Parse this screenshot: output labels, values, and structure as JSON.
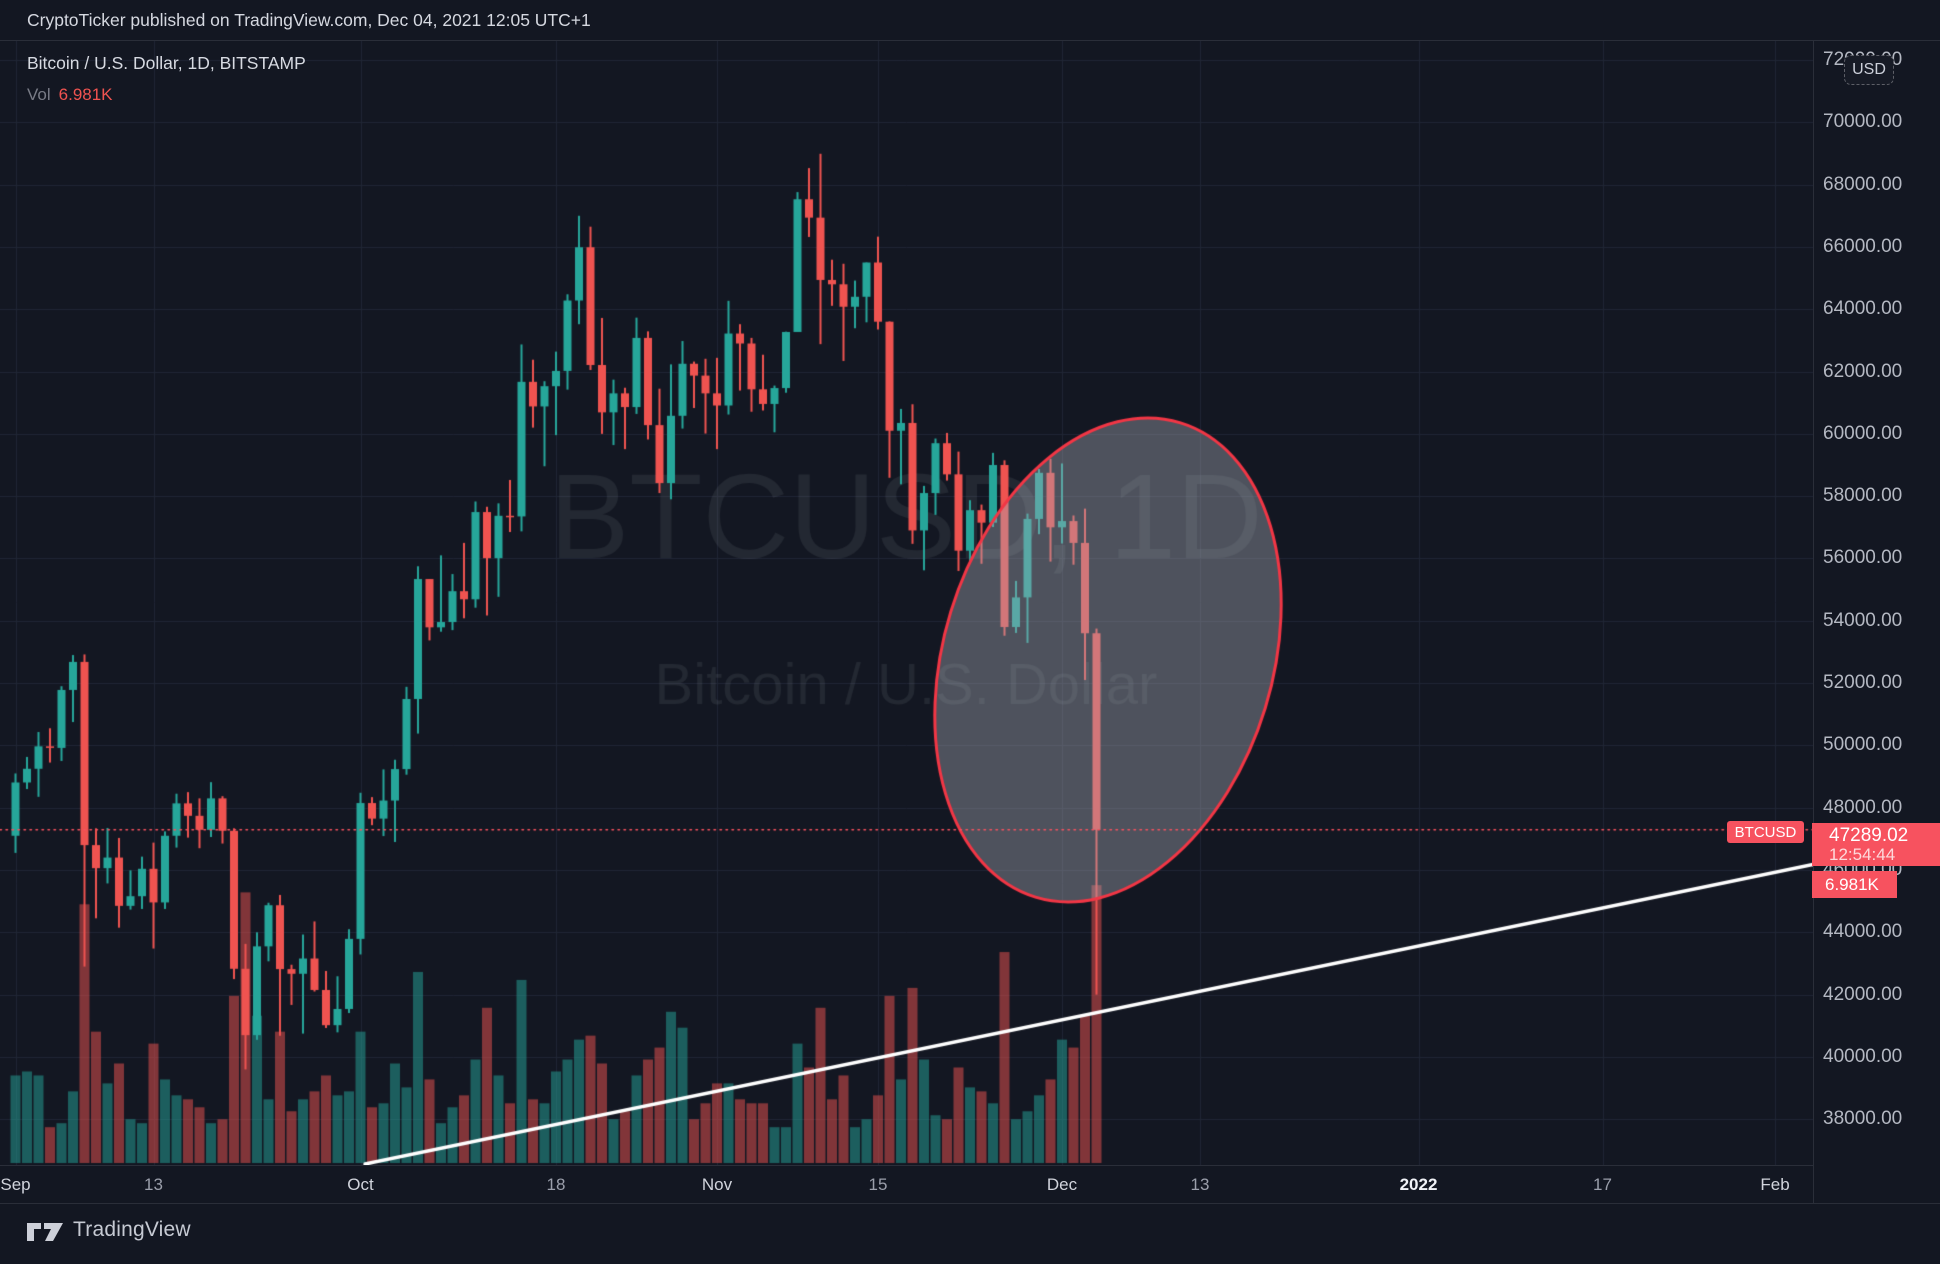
{
  "top_bar": {
    "text": "CryptoTicker published on TradingView.com, Dec 04, 2021 12:05 UTC+1"
  },
  "legend": {
    "title": "Bitcoin / U.S. Dollar, 1D, BITSTAMP",
    "vol_label": "Vol",
    "vol_value": "6.981K"
  },
  "watermark": {
    "line1": "BTCUSD, 1D",
    "line2": "Bitcoin / U.S. Dollar"
  },
  "price_axis": {
    "currency_button": "USD",
    "ticks": [
      {
        "price": 72000,
        "label": "72000.00"
      },
      {
        "price": 70000,
        "label": "70000.00"
      },
      {
        "price": 68000,
        "label": "68000.00"
      },
      {
        "price": 66000,
        "label": "66000.00"
      },
      {
        "price": 64000,
        "label": "64000.00"
      },
      {
        "price": 62000,
        "label": "62000.00"
      },
      {
        "price": 60000,
        "label": "60000.00"
      },
      {
        "price": 58000,
        "label": "58000.00"
      },
      {
        "price": 56000,
        "label": "56000.00"
      },
      {
        "price": 54000,
        "label": "54000.00"
      },
      {
        "price": 52000,
        "label": "52000.00"
      },
      {
        "price": 50000,
        "label": "50000.00"
      },
      {
        "price": 48000,
        "label": "48000.00"
      },
      {
        "price": 46000,
        "label": "46000.00"
      },
      {
        "price": 44000,
        "label": "44000.00"
      },
      {
        "price": 42000,
        "label": "42000.00"
      },
      {
        "price": 40000,
        "label": "40000.00"
      },
      {
        "price": 38000,
        "label": "38000.00"
      }
    ]
  },
  "time_axis": {
    "ticks": [
      {
        "day": 0,
        "label": "Sep",
        "type": "month"
      },
      {
        "day": 12,
        "label": "13",
        "type": "day"
      },
      {
        "day": 30,
        "label": "Oct",
        "type": "month"
      },
      {
        "day": 47,
        "label": "18",
        "type": "day"
      },
      {
        "day": 61,
        "label": "Nov",
        "type": "month"
      },
      {
        "day": 75,
        "label": "15",
        "type": "day"
      },
      {
        "day": 91,
        "label": "Dec",
        "type": "month"
      },
      {
        "day": 103,
        "label": "13",
        "type": "day"
      },
      {
        "day": 122,
        "label": "2022",
        "type": "year"
      },
      {
        "day": 138,
        "label": "17",
        "type": "day"
      },
      {
        "day": 153,
        "label": "Feb",
        "type": "month"
      }
    ]
  },
  "last_price_labels": {
    "tag": "BTCUSD",
    "price": "47289.02",
    "countdown": "12:54:44",
    "volume": "6.981K"
  },
  "footer": {
    "brand": "TradingView"
  },
  "colors": {
    "background": "#131722",
    "grid": "#202535",
    "up": "#26a69a",
    "down": "#ef5350",
    "volume_up": "rgba(38,166,154,0.5)",
    "volume_down": "rgba(239,83,80,0.5)",
    "label_red": "#f7525f",
    "ellipse_stroke": "#f23645",
    "ellipse_fill": "rgba(168,173,183,0.40)",
    "trendline": "#ffffff",
    "watermark": "rgba(210,215,226,0.085)"
  },
  "chart_data": {
    "type": "candlestick",
    "symbol": "BTCUSD",
    "exchange": "BITSTAMP",
    "interval": "1D",
    "ylim": [
      36500,
      72650
    ],
    "last_price": 47289.02,
    "dates": [
      "09-01",
      "09-02",
      "09-03",
      "09-04",
      "09-05",
      "09-06",
      "09-07",
      "09-08",
      "09-09",
      "09-10",
      "09-11",
      "09-12",
      "09-13",
      "09-14",
      "09-15",
      "09-16",
      "09-17",
      "09-18",
      "09-19",
      "09-20",
      "09-21",
      "09-22",
      "09-23",
      "09-24",
      "09-25",
      "09-26",
      "09-27",
      "09-28",
      "09-29",
      "09-30",
      "10-01",
      "10-02",
      "10-03",
      "10-04",
      "10-05",
      "10-06",
      "10-07",
      "10-08",
      "10-09",
      "10-10",
      "10-11",
      "10-12",
      "10-13",
      "10-14",
      "10-15",
      "10-16",
      "10-17",
      "10-18",
      "10-19",
      "10-20",
      "10-21",
      "10-22",
      "10-23",
      "10-24",
      "10-25",
      "10-26",
      "10-27",
      "10-28",
      "10-29",
      "10-30",
      "10-31",
      "11-01",
      "11-02",
      "11-03",
      "11-04",
      "11-05",
      "11-06",
      "11-07",
      "11-08",
      "11-09",
      "11-10",
      "11-11",
      "11-12",
      "11-13",
      "11-14",
      "11-15",
      "11-16",
      "11-17",
      "11-18",
      "11-19",
      "11-20",
      "11-21",
      "11-22",
      "11-23",
      "11-24",
      "11-25",
      "11-26",
      "11-27",
      "11-28",
      "11-29",
      "11-30",
      "12-01",
      "12-02",
      "12-03",
      "12-04"
    ],
    "open": [
      47100,
      48810,
      49250,
      49970,
      49920,
      51780,
      52680,
      46800,
      46060,
      46400,
      44850,
      45160,
      46040,
      44960,
      47100,
      48140,
      47740,
      47290,
      48300,
      47260,
      42830,
      40700,
      43550,
      44870,
      42820,
      42670,
      43160,
      42150,
      41020,
      41540,
      43790,
      48150,
      47650,
      48230,
      49240,
      51490,
      55340,
      53790,
      53960,
      54950,
      54690,
      57490,
      56010,
      57370,
      57350,
      61670,
      60880,
      61530,
      62020,
      64280,
      65990,
      62210,
      60690,
      61300,
      60860,
      63080,
      60280,
      58420,
      60580,
      62250,
      61870,
      61300,
      60910,
      63220,
      62900,
      61430,
      60960,
      61470,
      63270,
      67530,
      66940,
      64940,
      64800,
      64080,
      64400,
      65500,
      63600,
      60100,
      60350,
      56900,
      58100,
      59700,
      58700,
      56250,
      57550,
      57150,
      59000,
      53800,
      54750,
      57270,
      58750,
      57000,
      57200,
      56500,
      53600
    ],
    "high": [
      49100,
      49630,
      50430,
      50550,
      51900,
      52900,
      52920,
      47340,
      47350,
      47030,
      45990,
      46430,
      46880,
      47240,
      48450,
      48500,
      48300,
      48820,
      48370,
      47340,
      43630,
      44000,
      44950,
      45200,
      42960,
      43930,
      44350,
      42760,
      42590,
      44100,
      48480,
      48340,
      49230,
      49540,
      51880,
      55750,
      55340,
      56100,
      55500,
      56500,
      57830,
      57660,
      57770,
      58520,
      62870,
      62380,
      61690,
      62640,
      64480,
      67000,
      66650,
      63720,
      61740,
      61480,
      63730,
      63290,
      61450,
      62230,
      62980,
      62320,
      62410,
      62440,
      64270,
      63520,
      63080,
      62540,
      61550,
      63280,
      67760,
      68530,
      68990,
      65590,
      65460,
      64920,
      65500,
      66330,
      63610,
      60800,
      60950,
      58330,
      59850,
      60030,
      59430,
      57870,
      57730,
      59390,
      59150,
      55280,
      57440,
      58870,
      59200,
      59050,
      57380,
      57600,
      53750
    ],
    "low": [
      46550,
      48600,
      48350,
      49450,
      49500,
      50750,
      42900,
      44450,
      45570,
      44150,
      44730,
      44750,
      43480,
      44750,
      46720,
      47040,
      46700,
      47060,
      46850,
      42500,
      39600,
      40550,
      43070,
      40680,
      41670,
      40750,
      42100,
      40930,
      40790,
      41410,
      43290,
      47440,
      47090,
      46900,
      49060,
      50380,
      53370,
      53650,
      53700,
      54080,
      54420,
      54170,
      54770,
      56850,
      56870,
      60200,
      58960,
      59960,
      61420,
      63520,
      62050,
      60000,
      59640,
      59510,
      60640,
      59820,
      58100,
      57900,
      60170,
      60830,
      60010,
      59510,
      60620,
      61390,
      60710,
      60750,
      60050,
      61320,
      63270,
      66320,
      62880,
      64110,
      62340,
      63390,
      63580,
      63350,
      58590,
      58380,
      56470,
      55620,
      57400,
      58500,
      55600,
      55920,
      55830,
      57010,
      53520,
      53610,
      53290,
      56780,
      55900,
      56480,
      55800,
      52100,
      42000
    ],
    "close": [
      48810,
      49250,
      49970,
      49920,
      51780,
      52680,
      46800,
      46060,
      46400,
      44850,
      45160,
      46040,
      44960,
      47100,
      48140,
      47740,
      47290,
      48300,
      47260,
      42830,
      40700,
      43550,
      44870,
      42820,
      42670,
      43160,
      42150,
      41020,
      41540,
      43790,
      48150,
      47650,
      48230,
      49240,
      51490,
      55340,
      53790,
      53960,
      54950,
      54690,
      57490,
      56010,
      57370,
      57350,
      61670,
      60880,
      61530,
      62020,
      64280,
      65990,
      62210,
      60690,
      61300,
      60860,
      63080,
      60280,
      58420,
      60580,
      62250,
      61870,
      61300,
      60910,
      63220,
      62900,
      61430,
      60960,
      61470,
      63270,
      67530,
      66940,
      64940,
      64800,
      64080,
      64400,
      65500,
      63600,
      60100,
      60350,
      56900,
      58100,
      59700,
      58700,
      56250,
      57550,
      57150,
      59000,
      53800,
      54750,
      57270,
      58750,
      57000,
      57200,
      56500,
      53600,
      47289.02
    ],
    "volume_k": [
      2.2,
      2.3,
      2.2,
      0.9,
      1.0,
      1.8,
      6.5,
      3.3,
      2.0,
      2.5,
      1.1,
      1.0,
      3.0,
      2.1,
      1.7,
      1.6,
      1.4,
      1.0,
      1.1,
      4.2,
      6.8,
      3.7,
      1.6,
      3.3,
      1.3,
      1.6,
      1.8,
      2.2,
      1.7,
      1.8,
      3.3,
      1.4,
      1.5,
      2.5,
      1.9,
      4.8,
      2.1,
      1.0,
      1.4,
      1.7,
      2.6,
      3.9,
      2.2,
      1.5,
      4.6,
      1.6,
      1.5,
      2.3,
      2.6,
      3.1,
      3.2,
      2.5,
      1.1,
      1.3,
      2.2,
      2.6,
      2.9,
      3.8,
      3.4,
      1.1,
      1.5,
      2.0,
      2.0,
      1.6,
      1.5,
      1.5,
      0.9,
      0.9,
      3.0,
      2.4,
      3.9,
      1.6,
      2.2,
      0.9,
      1.1,
      1.7,
      4.2,
      2.1,
      4.4,
      2.6,
      1.2,
      1.1,
      2.4,
      1.9,
      1.8,
      1.5,
      5.3,
      1.1,
      1.3,
      1.7,
      2.1,
      3.1,
      2.9,
      3.7,
      6.981
    ],
    "trendline": {
      "x1_day": 30.4,
      "price1": 36566,
      "x2_day": 156.3,
      "price2": 46175
    },
    "ellipse_annotation": {
      "cx_day": 95,
      "cy_price": 52742,
      "rx_days": 14.3,
      "ry_price": 7960,
      "rotation_deg": 17
    }
  }
}
